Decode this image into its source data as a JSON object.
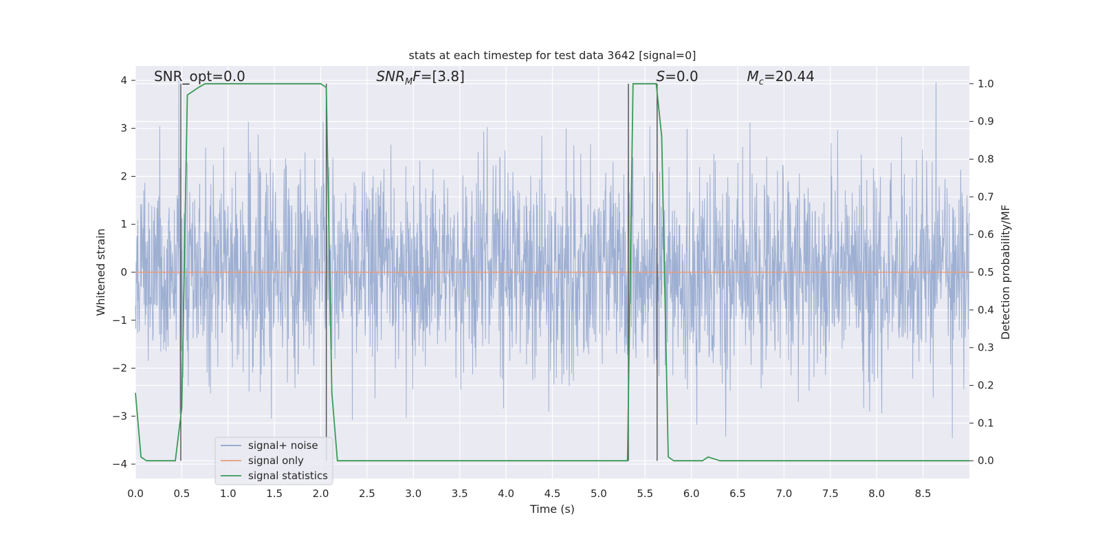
{
  "chart_data": {
    "type": "line",
    "title": "stats at each timestep for test data 3642 [signal=0]",
    "xlabel": "Time (s)",
    "ylabel": "Whitened strain",
    "y2label": "Detection probability/MF",
    "xlim": [
      0.0,
      9.0
    ],
    "ylim": [
      -4.3,
      4.3
    ],
    "y2lim": [
      -0.047,
      1.047
    ],
    "xticks": [
      "0.0",
      "0.5",
      "1.0",
      "1.5",
      "2.0",
      "2.5",
      "3.0",
      "3.5",
      "4.0",
      "4.5",
      "5.0",
      "5.5",
      "6.0",
      "6.5",
      "7.0",
      "7.5",
      "8.0",
      "8.5"
    ],
    "xtick_values": [
      0.0,
      0.5,
      1.0,
      1.5,
      2.0,
      2.5,
      3.0,
      3.5,
      4.0,
      4.5,
      5.0,
      5.5,
      6.0,
      6.5,
      7.0,
      7.5,
      8.0,
      8.5
    ],
    "yticks": [
      "−4",
      "−3",
      "−2",
      "−1",
      "0",
      "1",
      "2",
      "3",
      "4"
    ],
    "ytick_values": [
      -4,
      -3,
      -2,
      -1,
      0,
      1,
      2,
      3,
      4
    ],
    "y2ticks": [
      "0.0",
      "0.1",
      "0.2",
      "0.3",
      "0.4",
      "0.5",
      "0.6",
      "0.7",
      "0.8",
      "0.9",
      "1.0"
    ],
    "y2tick_values": [
      0.0,
      0.1,
      0.2,
      0.3,
      0.4,
      0.5,
      0.6,
      0.7,
      0.8,
      0.9,
      1.0
    ],
    "grid": true,
    "legend_position": "lower-left",
    "annotations": [
      {
        "id": "snr-opt",
        "text": "SNR_opt=0.0",
        "x": 0.2,
        "y": 4.0
      },
      {
        "id": "snr-mf",
        "text": "SNR",
        "sub": "M",
        "rest": "F=[3.8]",
        "x": 2.6,
        "y": 4.0,
        "italic": true
      },
      {
        "id": "s-value",
        "text": "S",
        "rest": "=0.0",
        "x": 5.62,
        "y": 4.0,
        "italic": true
      },
      {
        "id": "mc-value",
        "text": "M",
        "sub": "c",
        "rest": "=20.44",
        "x": 6.6,
        "y": 4.0,
        "italic": true
      }
    ],
    "vertical_lines": [
      0.49,
      2.06,
      5.32,
      5.63
    ],
    "series": [
      {
        "name": "signal+ noise",
        "color": "#8fa4cc",
        "axis": "left",
        "kind": "noise",
        "duration": 9.0,
        "sigma": 1.0,
        "min": -3.8,
        "max": 4.0
      },
      {
        "name": "signal only",
        "color": "#e79c7d",
        "axis": "left",
        "x": [
          0.0,
          9.0
        ],
        "values": [
          0.0,
          0.0
        ]
      },
      {
        "name": "signal statistics",
        "color": "#3a9a55",
        "axis": "right",
        "x": [
          0.0,
          0.06,
          0.12,
          0.18,
          0.43,
          0.5,
          0.56,
          0.62,
          0.68,
          0.75,
          0.81,
          2.0,
          2.06,
          2.12,
          2.18,
          5.31,
          5.37,
          5.43,
          5.5,
          5.62,
          5.68,
          5.75,
          5.81,
          6.12,
          6.18,
          6.31,
          9.0
        ],
        "values": [
          0.18,
          0.01,
          0.0,
          0.0,
          0.0,
          0.14,
          0.97,
          0.98,
          0.99,
          1.0,
          1.0,
          1.0,
          0.99,
          0.18,
          0.0,
          0.0,
          1.0,
          1.0,
          1.0,
          1.0,
          0.86,
          0.01,
          0.0,
          0.0,
          0.01,
          0.0,
          0.0
        ]
      }
    ]
  }
}
